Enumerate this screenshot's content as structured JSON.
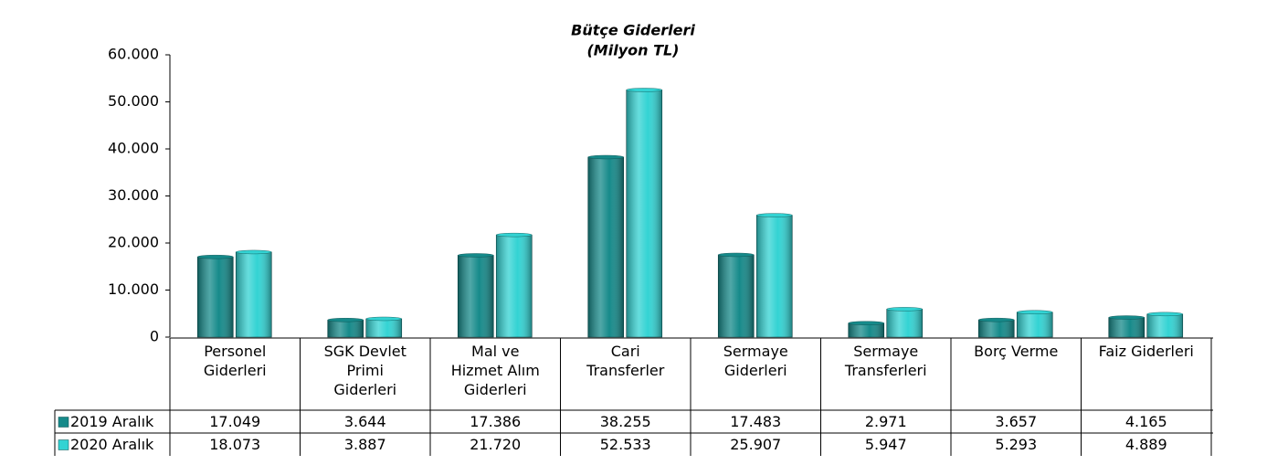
{
  "chart_data": {
    "type": "bar",
    "title": "Bütçe Giderleri",
    "subtitle": "(Milyon TL)",
    "categories": [
      "Personel Giderleri",
      "SGK Devlet Primi Giderleri",
      "Mal ve Hizmet Alım Giderleri",
      "Cari Transferler",
      "Sermaye Giderleri",
      "Sermaye Transferleri",
      "Borç Verme",
      "Faiz Giderleri"
    ],
    "series": [
      {
        "name": "2019 Aralık",
        "color": "#168a8a",
        "values": [
          17049,
          3644,
          17386,
          38255,
          17483,
          2971,
          3657,
          4165
        ],
        "value_labels": [
          "17.049",
          "3.644",
          "17.386",
          "38.255",
          "17.483",
          "2.971",
          "3.657",
          "4.165"
        ]
      },
      {
        "name": "2020 Aralık",
        "color": "#33d3d3",
        "values": [
          18073,
          3887,
          21720,
          52533,
          25907,
          5947,
          5293,
          4889
        ],
        "value_labels": [
          "18.073",
          "3.887",
          "21.720",
          "52.533",
          "25.907",
          "5.947",
          "5.293",
          "4.889"
        ]
      }
    ],
    "ylim": [
      0,
      60000
    ],
    "yticks": [
      0,
      {
        "value": 10000,
        "label": "10.000"
      },
      {
        "value": 20000,
        "label": "20.000"
      },
      {
        "value": 30000,
        "label": "30.000"
      },
      {
        "value": 40000,
        "label": "40.000"
      },
      {
        "value": 50000,
        "label": "50.000"
      },
      {
        "value": 60000,
        "label": "60.000"
      }
    ],
    "grid": false
  }
}
